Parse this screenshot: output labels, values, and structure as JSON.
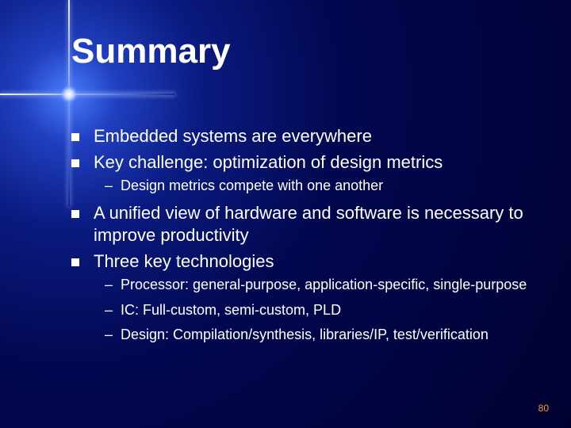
{
  "title": "Summary",
  "bullets": [
    {
      "text": "Embedded systems are everywhere",
      "subs": []
    },
    {
      "text": "Key challenge: optimization of design metrics",
      "subs": [
        "Design metrics compete with one another"
      ]
    },
    {
      "text": "A unified view of hardware and software is necessary to improve productivity",
      "subs": []
    },
    {
      "text": "Three key technologies",
      "subs": [
        "Processor: general-purpose, application-specific, single-purpose",
        "IC: Full-custom, semi-custom, PLD",
        "Design: Compilation/synthesis, libraries/IP, test/verification"
      ]
    }
  ],
  "page_number": "80",
  "colors": {
    "text": "#ffffff",
    "page_num": "#ff9933",
    "bg_deep": "#000030"
  },
  "typography": {
    "title_fontsize": 44,
    "bullet_fontsize": 22,
    "sub_fontsize": 18,
    "pagenum_fontsize": 12,
    "font_family": "Verdana"
  }
}
